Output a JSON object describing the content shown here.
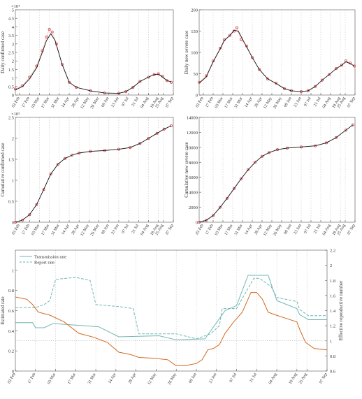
{
  "chart_data": [
    {
      "type": "line",
      "ylabel": "Daily confirmed case",
      "exponent": "×10⁴",
      "ylim": [
        0,
        5
      ],
      "yticks": [
        0,
        0.5,
        1,
        1.5,
        2,
        2.5,
        3,
        3.5,
        4,
        4.5,
        5
      ],
      "ytick_labels": [
        "0",
        "0.5",
        "1",
        "1.5",
        "2",
        "2.5",
        "3",
        "3.5",
        "4",
        "4.5",
        "5"
      ],
      "xticks": [
        "03 Feb",
        "17 Feb",
        "03 Mar",
        "17 Mar",
        "31 Mar",
        "14 Apr",
        "28 Apr",
        "12 May",
        "26 May",
        "09 Jun",
        "23 Jun",
        "07 Jul",
        "21 Jul",
        "04 Aug",
        "18 Aug",
        "25 Aug",
        "07 Sep"
      ],
      "xtick_days": [
        0,
        14,
        28,
        42,
        56,
        70,
        84,
        98,
        112,
        126,
        140,
        154,
        168,
        182,
        196,
        203,
        217
      ],
      "xlim": [
        -6,
        217
      ],
      "series": [
        {
          "style": "observed",
          "x": [
            -6,
            4,
            14,
            24,
            32,
            38,
            42,
            46,
            52,
            60,
            70,
            80,
            100,
            120,
            140,
            150,
            160,
            170,
            182,
            190,
            196,
            202,
            208,
            214
          ],
          "y": [
            0.35,
            0.55,
            1.05,
            1.7,
            2.6,
            3.4,
            3.85,
            3.7,
            3.0,
            1.8,
            0.75,
            0.45,
            0.25,
            0.12,
            0.1,
            0.2,
            0.45,
            0.8,
            1.05,
            1.2,
            1.25,
            1.1,
            0.85,
            0.75
          ]
        },
        {
          "style": "fitted",
          "x": [
            -6,
            4,
            14,
            24,
            32,
            38,
            44,
            50,
            60,
            70,
            80,
            100,
            120,
            140,
            150,
            160,
            170,
            182,
            190,
            196,
            202,
            208,
            214
          ],
          "y": [
            0.3,
            0.5,
            0.95,
            1.6,
            2.5,
            3.2,
            3.6,
            3.2,
            1.8,
            0.75,
            0.45,
            0.25,
            0.12,
            0.1,
            0.2,
            0.45,
            0.8,
            1.05,
            1.2,
            1.22,
            1.05,
            0.85,
            0.78
          ]
        }
      ]
    },
    {
      "type": "line",
      "ylabel": "Daily new severe case",
      "ylim": [
        0,
        200
      ],
      "yticks": [
        0,
        50,
        100,
        150,
        200
      ],
      "ytick_labels": [
        "0",
        "50",
        "100",
        "150",
        "200"
      ],
      "xticks": [
        "03 Feb",
        "17 Feb",
        "03 Mar",
        "17 Mar",
        "31 Mar",
        "14 Apr",
        "28 Apr",
        "12 May",
        "26 May",
        "09 Jun",
        "23 Jun",
        "07 Jul",
        "21 Jul",
        "04 Aug",
        "18 Aug",
        "25 Aug",
        "07 Sep"
      ],
      "xtick_days": [
        0,
        14,
        28,
        42,
        56,
        70,
        84,
        98,
        112,
        126,
        140,
        154,
        168,
        182,
        196,
        203,
        217
      ],
      "xlim": [
        -6,
        217
      ],
      "series": [
        {
          "style": "observed",
          "x": [
            -6,
            4,
            14,
            24,
            30,
            38,
            44,
            48,
            54,
            62,
            70,
            80,
            92,
            104,
            116,
            126,
            140,
            150,
            160,
            170,
            180,
            190,
            198,
            204,
            210,
            216
          ],
          "y": [
            30,
            45,
            80,
            110,
            130,
            140,
            150,
            158,
            130,
            115,
            88,
            60,
            38,
            28,
            15,
            10,
            8,
            10,
            20,
            35,
            48,
            62,
            70,
            80,
            75,
            68
          ]
        },
        {
          "style": "fitted",
          "x": [
            -6,
            4,
            14,
            24,
            30,
            38,
            44,
            50,
            58,
            70,
            80,
            92,
            104,
            116,
            126,
            140,
            150,
            160,
            170,
            180,
            190,
            198,
            204,
            210,
            216
          ],
          "y": [
            28,
            42,
            78,
            108,
            128,
            140,
            152,
            150,
            125,
            88,
            60,
            38,
            27,
            15,
            10,
            8,
            10,
            20,
            35,
            48,
            62,
            70,
            78,
            74,
            68
          ]
        }
      ]
    },
    {
      "type": "line",
      "ylabel": "Cumulative confirmed case",
      "exponent": "×10⁵",
      "ylim": [
        0,
        2.5
      ],
      "yticks": [
        0,
        0.5,
        1,
        1.5,
        2,
        2.5
      ],
      "ytick_labels": [
        "0",
        "0.5",
        "1",
        "1.5",
        "2",
        "2.5"
      ],
      "xticks": [
        "03 Feb",
        "17 Feb",
        "03 Mar",
        "17 Mar",
        "31 Mar",
        "14 Apr",
        "28 Apr",
        "12 May",
        "26 May",
        "09 Jun",
        "23 Jun",
        "07 Jul",
        "21 Jul",
        "04 Aug",
        "18 Aug",
        "25 Aug",
        "07 Sep"
      ],
      "xtick_days": [
        0,
        14,
        28,
        42,
        56,
        70,
        84,
        98,
        112,
        126,
        140,
        154,
        168,
        182,
        196,
        203,
        217
      ],
      "xlim": [
        -6,
        217
      ],
      "series": [
        {
          "style": "observed",
          "x": [
            -6,
            4,
            14,
            24,
            34,
            44,
            54,
            64,
            74,
            84,
            100,
            120,
            140,
            156,
            170,
            182,
            194,
            204,
            214
          ],
          "y": [
            0.0,
            0.05,
            0.18,
            0.42,
            0.78,
            1.15,
            1.38,
            1.52,
            1.6,
            1.65,
            1.69,
            1.71,
            1.74,
            1.78,
            1.88,
            2.0,
            2.12,
            2.22,
            2.3
          ]
        },
        {
          "style": "fitted",
          "x": [
            -6,
            4,
            14,
            24,
            34,
            44,
            54,
            64,
            74,
            84,
            100,
            120,
            140,
            156,
            170,
            182,
            194,
            204,
            214
          ],
          "y": [
            0.0,
            0.05,
            0.18,
            0.42,
            0.78,
            1.15,
            1.38,
            1.52,
            1.6,
            1.65,
            1.69,
            1.71,
            1.74,
            1.78,
            1.88,
            2.0,
            2.12,
            2.22,
            2.3
          ]
        }
      ]
    },
    {
      "type": "line",
      "ylabel": "Cumulative new severe case",
      "ylim": [
        0,
        14000
      ],
      "yticks": [
        0,
        2000,
        4000,
        6000,
        8000,
        10000,
        12000,
        14000
      ],
      "ytick_labels": [
        "0",
        "2000",
        "4000",
        "6000",
        "8000",
        "10000",
        "12000",
        "14000"
      ],
      "xticks": [
        "03 Feb",
        "17 Feb",
        "03 Mar",
        "17 Mar",
        "31 Mar",
        "14 Apr",
        "28 Apr",
        "12 May",
        "26 May",
        "09 Jun",
        "23 Jun",
        "07 Jul",
        "21 Jul",
        "04 Aug",
        "18 Aug",
        "25 Aug",
        "07 Sep"
      ],
      "xtick_days": [
        0,
        14,
        28,
        42,
        56,
        70,
        84,
        98,
        112,
        126,
        140,
        154,
        168,
        182,
        196,
        203,
        217
      ],
      "xlim": [
        -6,
        217
      ],
      "series": [
        {
          "style": "observed",
          "x": [
            -6,
            4,
            14,
            24,
            34,
            44,
            54,
            64,
            74,
            84,
            94,
            106,
            120,
            140,
            160,
            176,
            190,
            204,
            214
          ],
          "y": [
            0,
            250,
            900,
            2000,
            3200,
            4500,
            5800,
            7000,
            8000,
            8800,
            9300,
            9700,
            9900,
            10050,
            10200,
            10600,
            11300,
            12300,
            13000
          ]
        },
        {
          "style": "fitted",
          "x": [
            -6,
            4,
            14,
            24,
            34,
            44,
            54,
            64,
            74,
            84,
            94,
            106,
            120,
            140,
            160,
            176,
            190,
            204,
            214
          ],
          "y": [
            0,
            250,
            900,
            2000,
            3200,
            4500,
            5800,
            7000,
            8000,
            8800,
            9300,
            9700,
            9900,
            10050,
            10200,
            10600,
            11300,
            12300,
            13000
          ]
        }
      ]
    },
    {
      "type": "line",
      "ylabel": "Estimated rate",
      "y2label": "Effective reproductive number",
      "ylim": [
        0,
        1.2
      ],
      "yticks": [
        0,
        0.2,
        0.4,
        0.6,
        0.8,
        1
      ],
      "ytick_labels": [
        "0",
        "0.2",
        "0.4",
        "0.6",
        "0.8",
        "1"
      ],
      "y2lim": [
        0.6,
        2.2
      ],
      "y2ticks": [
        0.6,
        0.8,
        1,
        1.2,
        1.4,
        1.6,
        1.8,
        2,
        2.2
      ],
      "y2tick_labels": [
        "0.6",
        "0.8",
        "1",
        "1.2",
        "1.4",
        "1.6",
        "1.8",
        "2",
        "2.2"
      ],
      "xticks": [
        "03 Feb",
        "17 Feb",
        "03 Mar",
        "17 Mar",
        "31 Mar",
        "14 Apr",
        "28 Apr",
        "12 May",
        "26 May",
        "09 Jun",
        "23 Jun",
        "07 Jul",
        "21 Jul",
        "04 Aug",
        "18 Aug",
        "25 Aug",
        "07 Sep"
      ],
      "xtick_days": [
        0,
        14,
        28,
        42,
        56,
        70,
        84,
        98,
        112,
        126,
        140,
        154,
        168,
        182,
        196,
        203,
        217
      ],
      "xlim": [
        0,
        217
      ],
      "reference_y2": 1,
      "legend": [
        "Transmission rate",
        "Report rate"
      ],
      "legend_position": "top-left",
      "series": [
        {
          "name": "Transmission rate",
          "axis": "left",
          "style": "solid",
          "color": "#6fb6b4",
          "x": [
            0,
            12,
            14,
            20,
            26,
            28,
            58,
            72,
            100,
            112,
            132,
            146,
            154,
            162,
            176,
            182,
            196,
            198,
            204,
            217
          ],
          "y": [
            0.48,
            0.48,
            0.43,
            0.43,
            0.47,
            0.47,
            0.44,
            0.34,
            0.35,
            0.31,
            0.32,
            0.6,
            0.65,
            0.95,
            0.95,
            0.7,
            0.62,
            0.56,
            0.51,
            0.51
          ]
        },
        {
          "name": "Report rate",
          "axis": "left",
          "style": "dashed",
          "color": "#6fb6b4",
          "x": [
            0,
            14,
            20,
            24,
            28,
            42,
            52,
            56,
            72,
            82,
            86,
            112,
            126,
            136,
            142,
            144,
            154,
            160,
            166,
            170,
            178,
            182,
            196,
            198,
            204,
            217
          ],
          "y": [
            0.63,
            0.63,
            0.66,
            0.7,
            0.91,
            0.93,
            0.9,
            0.66,
            0.64,
            0.62,
            0.37,
            0.37,
            0.32,
            0.37,
            0.45,
            0.62,
            0.62,
            0.77,
            0.92,
            0.92,
            0.84,
            0.73,
            0.69,
            0.61,
            0.55,
            0.55
          ]
        },
        {
          "name": "Effective reproductive number",
          "axis": "right",
          "style": "solid",
          "color": "#d2691e",
          "x": [
            0,
            8,
            12,
            16,
            24,
            34,
            44,
            54,
            64,
            72,
            80,
            86,
            96,
            106,
            112,
            118,
            126,
            130,
            134,
            138,
            142,
            146,
            152,
            158,
            164,
            168,
            172,
            176,
            180,
            188,
            196,
            198,
            202,
            208,
            217
          ],
          "y": [
            1.58,
            1.55,
            1.48,
            1.38,
            1.34,
            1.25,
            1.1,
            1.05,
            0.98,
            0.85,
            0.82,
            0.78,
            0.77,
            0.75,
            0.67,
            0.67,
            0.7,
            0.75,
            0.88,
            0.9,
            0.95,
            1.1,
            1.25,
            1.38,
            1.64,
            1.64,
            1.55,
            1.38,
            1.35,
            1.3,
            1.25,
            1.15,
            0.98,
            0.9,
            0.88
          ]
        }
      ]
    }
  ]
}
